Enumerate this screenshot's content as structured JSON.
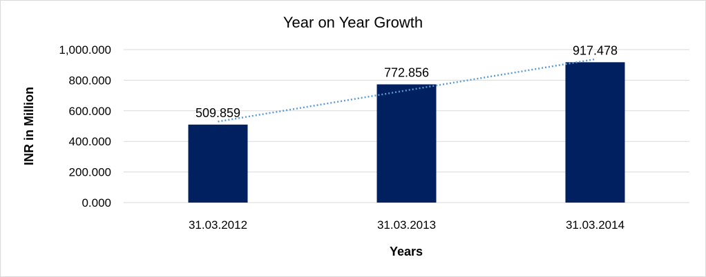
{
  "chart_data": {
    "type": "bar",
    "title": "Year on Year Growth",
    "xlabel": "Years",
    "ylabel": "INR in Million",
    "categories": [
      "31.03.2012",
      "31.03.2013",
      "31.03.2014"
    ],
    "values": [
      509.859,
      772.856,
      917.478
    ],
    "value_labels": [
      "509.859",
      "772.856",
      "917.478"
    ],
    "ylim": [
      0,
      1000
    ],
    "y_ticks": [
      0,
      200,
      400,
      600,
      800,
      1000
    ],
    "y_tick_labels": [
      "0.000",
      "200.000",
      "400.000",
      "600.000",
      "800.000",
      "1,000.000"
    ],
    "grid": true,
    "legend": false,
    "trendline": {
      "type": "linear",
      "style": "dotted",
      "color": "#5b9bd5"
    },
    "bar_color": "#002060",
    "grid_color": "#d9d9d9"
  }
}
